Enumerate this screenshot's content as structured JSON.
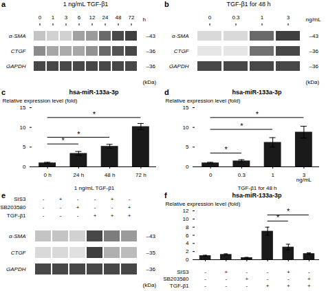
{
  "chart_data": [
    {
      "type": "heatmap",
      "panel_label": "a",
      "title": "1 ng/mL TGF-β1",
      "categories": [
        "0",
        "1",
        "3",
        "6",
        "12",
        "24",
        "48",
        "72"
      ],
      "xlabel": "h",
      "proteins": [
        "α-SMA",
        "CTGF",
        "GAPDH"
      ],
      "kda_labels": [
        "–43",
        "–36",
        "–36"
      ],
      "cells": [
        [
          0.28,
          0.22,
          0.22,
          0.45,
          0.48,
          0.72,
          0.87,
          0.92
        ],
        [
          0.55,
          0.42,
          0.4,
          0.42,
          0.52,
          0.72,
          0.82,
          0.88
        ],
        [
          0.88,
          0.88,
          0.88,
          0.88,
          0.88,
          0.88,
          0.88,
          0.88
        ]
      ],
      "zlim": [
        0,
        1
      ],
      "note": "(kDa)"
    },
    {
      "type": "heatmap",
      "panel_label": "b",
      "title": "TGF-β1 for 48 h",
      "categories": [
        "0",
        "0.3",
        "1",
        "3"
      ],
      "xlabel": "ng/mL",
      "proteins": [
        "α-SMA",
        "CTGF",
        "GAPDH"
      ],
      "kda_labels": [
        "–43",
        "–36",
        "–36"
      ],
      "cells": [
        [
          0.18,
          0.18,
          0.72,
          0.92
        ],
        [
          0.12,
          0.12,
          0.68,
          0.88
        ],
        [
          0.88,
          0.88,
          0.88,
          0.88
        ]
      ],
      "zlim": [
        0,
        1
      ],
      "note": "(kDa)"
    },
    {
      "type": "bar",
      "panel_label": "c",
      "title": "hsa-miR-133a-3p",
      "xlabel": "1 ng/mL TGF-β1",
      "ylabel": "Relative expression level (fold)",
      "categories": [
        "0 h",
        "24 h",
        "48 h",
        "72 h"
      ],
      "values": [
        1.0,
        3.4,
        5.2,
        10.2
      ],
      "errors": [
        0.15,
        0.5,
        0.5,
        0.8
      ],
      "color": "#1a1a1a",
      "ylim": [
        0,
        15
      ],
      "yticks": [
        0,
        5,
        10,
        15
      ],
      "significance": [
        {
          "x1": 0,
          "x2": 1,
          "y": 5.8,
          "label": "*"
        },
        {
          "x1": 0,
          "x2": 2,
          "y": 7.5,
          "label": "*"
        },
        {
          "x1": 0,
          "x2": 3,
          "y": 12.5,
          "label": "*"
        }
      ]
    },
    {
      "type": "bar",
      "panel_label": "d",
      "title": "hsa-miR-133a-3p",
      "xlabel": "TGF-β1 for 48 h",
      "ylabel": "Relative expression level (fold)",
      "categories": [
        "0",
        "0.3",
        "1",
        "3"
      ],
      "annotations": [
        {
          "label": "ng/mL",
          "category": "3"
        }
      ],
      "values": [
        1.0,
        1.5,
        6.2,
        8.8
      ],
      "errors": [
        0.15,
        0.3,
        1.2,
        1.5
      ],
      "color": "#1a1a1a",
      "ylim": [
        0,
        15
      ],
      "yticks": [
        0,
        5,
        10,
        15
      ],
      "significance": [
        {
          "x1": 0,
          "x2": 1,
          "y": 3.5,
          "label": "*"
        },
        {
          "x1": 0,
          "x2": 2,
          "y": 9.5,
          "label": "*"
        },
        {
          "x1": 0,
          "x2": 3,
          "y": 12.5,
          "label": "*"
        }
      ]
    },
    {
      "type": "heatmap",
      "panel_label": "e",
      "categories": [
        null,
        null,
        null,
        null,
        null,
        null
      ],
      "condition_rows": [
        {
          "name": "SIS3",
          "signs": [
            "-",
            "+",
            "-",
            "-",
            "+",
            "-"
          ]
        },
        {
          "name": "SB203580",
          "signs": [
            "-",
            "-",
            "+",
            "-",
            "-",
            "+"
          ]
        },
        {
          "name": "TGF-β1",
          "signs": [
            "-",
            "-",
            "-",
            "+",
            "+",
            "+"
          ]
        }
      ],
      "proteins": [
        "α-SMA",
        "CTGF",
        "GAPDH"
      ],
      "kda_labels": [
        "–43",
        "–35",
        "–36"
      ],
      "cells": [
        [
          0.28,
          0.28,
          0.22,
          0.88,
          0.62,
          0.48
        ],
        [
          0.18,
          0.18,
          0.15,
          0.92,
          0.38,
          0.32
        ],
        [
          0.88,
          0.88,
          0.88,
          0.88,
          0.88,
          0.88
        ]
      ],
      "zlim": [
        0,
        1
      ],
      "note": "(kDa)"
    },
    {
      "type": "bar",
      "panel_label": "f",
      "title": "hsa-miR-133a-3p",
      "ylabel": "Relative expression level (fold)",
      "categories": [
        null,
        null,
        null,
        null,
        null,
        null
      ],
      "values": [
        1.0,
        1.3,
        0.5,
        7.0,
        3.1,
        1.5
      ],
      "errors": [
        0.1,
        0.15,
        0.08,
        1.0,
        0.7,
        0.2
      ],
      "color": "#1a1a1a",
      "ylim": [
        0,
        12
      ],
      "yticks": [
        0,
        2,
        4,
        6,
        8,
        10,
        12
      ],
      "condition_rows": [
        {
          "name": "SIS3",
          "signs": [
            "-",
            "+",
            "-",
            "-",
            "+",
            "-"
          ]
        },
        {
          "name": "SB203580",
          "signs": [
            "-",
            "-",
            "+",
            "-",
            "-",
            "+"
          ]
        },
        {
          "name": "TGF-β1",
          "signs": [
            "-",
            "-",
            "-",
            "+",
            "+",
            "+"
          ]
        }
      ],
      "significance": [
        {
          "x1": 3,
          "x2": 4,
          "y": 9.5,
          "label": "*"
        },
        {
          "x1": 3,
          "x2": 5,
          "y": 11.0,
          "label": "*"
        }
      ]
    }
  ]
}
